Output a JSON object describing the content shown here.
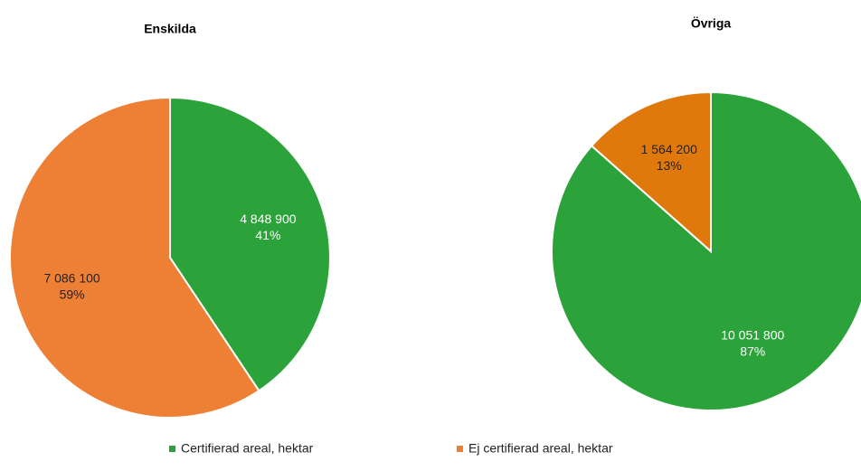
{
  "chart_data": [
    {
      "type": "pie",
      "title": "Enskilda",
      "categories": [
        "Certifierad areal, hektar",
        "Ej certifierad areal, hektar"
      ],
      "values": [
        4848900,
        7086100
      ],
      "value_labels": [
        "4 848 900",
        "7 086 100"
      ],
      "percentages": [
        41,
        59
      ],
      "percentage_labels": [
        "41%",
        "59%"
      ],
      "colors": [
        "#2ca33a",
        "#ee8035"
      ],
      "label_colors": [
        "#ffffff",
        "#222222"
      ]
    },
    {
      "type": "pie",
      "title": "Övriga",
      "categories": [
        "Certifierad areal, hektar",
        "Ej certifierad areal, hektar"
      ],
      "values": [
        10051800,
        1564200
      ],
      "value_labels": [
        "10 051 800",
        "1 564 200"
      ],
      "percentages": [
        87,
        13
      ],
      "percentage_labels": [
        "87%",
        "13%"
      ],
      "colors": [
        "#2ca33a",
        "#e0790b"
      ],
      "label_colors": [
        "#ffffff",
        "#222222"
      ]
    }
  ]
}
